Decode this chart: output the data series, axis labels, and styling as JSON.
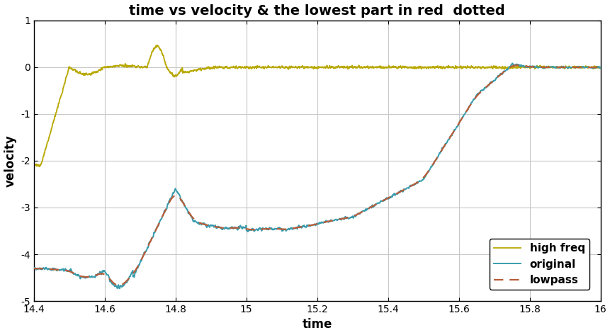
{
  "title": "time vs velocity & the lowest part in red  dotted",
  "xlabel": "time",
  "ylabel": "velocity",
  "xlim": [
    14.4,
    16.0
  ],
  "ylim": [
    -5,
    1
  ],
  "xticks": [
    14.4,
    14.6,
    14.8,
    15.0,
    15.2,
    15.4,
    15.6,
    15.8,
    16.0
  ],
  "yticks": [
    -5,
    -4,
    -3,
    -2,
    -1,
    0,
    1
  ],
  "original_color": "#3A9BAD",
  "lowpass_color": "#B85C38",
  "highfreq_color": "#B8A800",
  "legend_labels": [
    "original",
    "lowpass",
    "high freq"
  ],
  "title_fontsize": 14,
  "axis_fontsize": 12,
  "tick_fontsize": 10,
  "legend_fontsize": 11,
  "background_color": "#FFFFFF",
  "grid_color": "#C8C8C8"
}
